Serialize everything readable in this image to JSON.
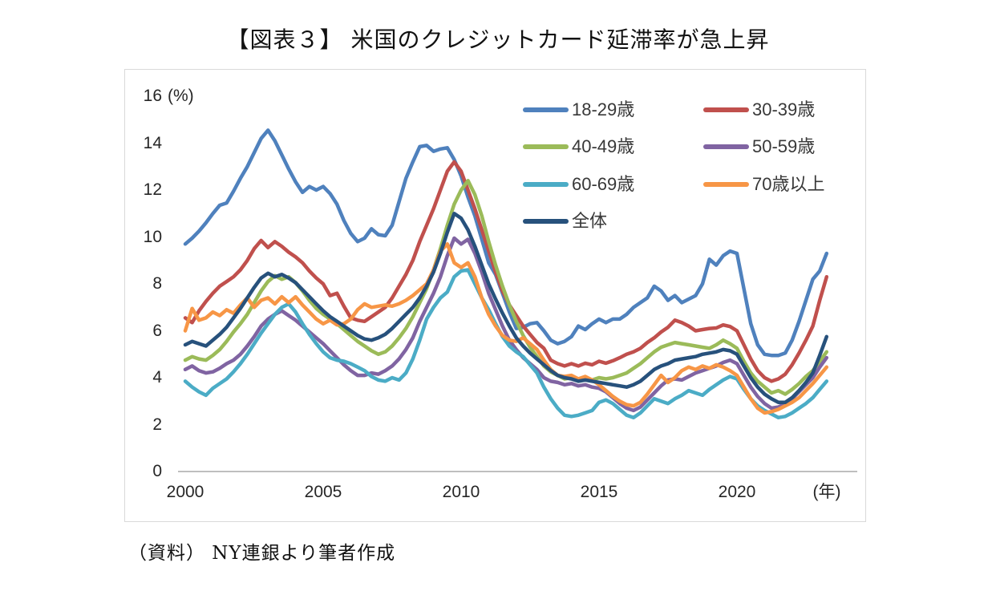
{
  "title": "【図表３】 米国のクレジットカード延滞率が急上昇",
  "source_note": "（資料） NY連銀より筆者作成",
  "chart_data": {
    "type": "line",
    "title": "【図表３】 米国のクレジットカード延滞率が急上昇",
    "grid": false,
    "legend": {
      "position": "top-right",
      "columns": 2
    },
    "y_axis": {
      "unit_label": "(%)",
      "min": 0,
      "max": 16,
      "tick_interval": 2,
      "ticks": [
        0,
        2,
        4,
        6,
        8,
        10,
        12,
        14,
        16
      ]
    },
    "x_axis": {
      "ticks": [
        2000,
        2005,
        2010,
        2015,
        2020
      ],
      "suffix_label": "(年)",
      "start_year": 2000,
      "end_year": 2023.25,
      "points_per_year": 4
    },
    "series": [
      {
        "name": "18-29歳",
        "color": "#4F81BD",
        "values": [
          9.7,
          9.95,
          10.25,
          10.6,
          11.0,
          11.35,
          11.45,
          11.95,
          12.5,
          13.0,
          13.6,
          14.2,
          14.55,
          14.1,
          13.5,
          12.9,
          12.35,
          11.9,
          12.15,
          12.0,
          12.15,
          11.85,
          11.4,
          10.7,
          10.15,
          9.8,
          9.95,
          10.35,
          10.1,
          10.05,
          10.5,
          11.5,
          12.5,
          13.2,
          13.85,
          13.9,
          13.65,
          13.75,
          13.8,
          13.3,
          12.6,
          11.7,
          10.9,
          9.9,
          8.9,
          8.4,
          7.6,
          6.8,
          6.1,
          6.15,
          6.3,
          6.35,
          6.0,
          5.6,
          5.45,
          5.55,
          5.75,
          6.2,
          6.05,
          6.3,
          6.5,
          6.35,
          6.5,
          6.5,
          6.7,
          7.0,
          7.2,
          7.4,
          7.9,
          7.7,
          7.3,
          7.5,
          7.2,
          7.35,
          7.5,
          8.0,
          9.05,
          8.8,
          9.2,
          9.4,
          9.3,
          7.8,
          6.3,
          5.4,
          5.0,
          4.95,
          4.95,
          5.05,
          5.6,
          6.4,
          7.3,
          8.2,
          8.55,
          9.3
        ]
      },
      {
        "name": "30-39歳",
        "color": "#C0504D",
        "values": [
          6.55,
          6.35,
          6.85,
          7.25,
          7.6,
          7.9,
          8.1,
          8.3,
          8.6,
          9.0,
          9.5,
          9.85,
          9.55,
          9.8,
          9.6,
          9.35,
          9.15,
          8.9,
          8.55,
          8.25,
          8.0,
          7.5,
          7.6,
          7.05,
          6.55,
          6.45,
          6.4,
          6.6,
          6.8,
          7.0,
          7.4,
          7.9,
          8.4,
          9.0,
          9.8,
          10.5,
          11.2,
          12.0,
          12.8,
          13.2,
          12.8,
          12.0,
          11.2,
          10.3,
          9.4,
          8.5,
          7.7,
          7.1,
          6.65,
          6.2,
          5.85,
          5.5,
          5.25,
          4.75,
          4.6,
          4.5,
          4.6,
          4.5,
          4.62,
          4.55,
          4.7,
          4.62,
          4.72,
          4.85,
          5.0,
          5.1,
          5.25,
          5.5,
          5.7,
          5.95,
          6.15,
          6.45,
          6.35,
          6.2,
          6.0,
          6.05,
          6.1,
          6.12,
          6.25,
          6.18,
          6.0,
          5.4,
          4.8,
          4.3,
          4.0,
          3.85,
          3.95,
          4.15,
          4.55,
          5.05,
          5.6,
          6.2,
          7.3,
          8.3
        ]
      },
      {
        "name": "40-49歳",
        "color": "#9BBB59",
        "values": [
          4.75,
          4.9,
          4.8,
          4.75,
          4.95,
          5.2,
          5.55,
          5.95,
          6.3,
          6.7,
          7.2,
          7.7,
          8.1,
          8.35,
          8.2,
          8.3,
          8.05,
          7.7,
          7.3,
          6.95,
          6.7,
          6.5,
          6.3,
          6.05,
          5.8,
          5.55,
          5.35,
          5.15,
          5.0,
          5.1,
          5.35,
          5.7,
          6.1,
          6.6,
          7.2,
          7.8,
          8.6,
          9.5,
          10.5,
          11.4,
          12.0,
          12.4,
          11.8,
          10.9,
          9.8,
          8.8,
          7.9,
          7.1,
          6.4,
          5.8,
          5.3,
          4.9,
          4.5,
          4.25,
          4.1,
          3.95,
          4.0,
          3.9,
          3.95,
          3.9,
          4.0,
          3.95,
          4.0,
          4.1,
          4.2,
          4.4,
          4.6,
          4.85,
          5.1,
          5.3,
          5.4,
          5.5,
          5.45,
          5.4,
          5.35,
          5.3,
          5.25,
          5.4,
          5.6,
          5.45,
          5.25,
          4.7,
          4.2,
          3.85,
          3.6,
          3.35,
          3.45,
          3.3,
          3.5,
          3.75,
          4.05,
          4.3,
          4.7,
          5.1
        ]
      },
      {
        "name": "50-59歳",
        "color": "#8064A2",
        "values": [
          4.35,
          4.5,
          4.3,
          4.2,
          4.25,
          4.4,
          4.6,
          4.75,
          5.0,
          5.35,
          5.75,
          6.2,
          6.5,
          6.7,
          6.85,
          6.65,
          6.45,
          6.2,
          5.95,
          5.7,
          5.45,
          5.15,
          4.85,
          4.55,
          4.3,
          4.1,
          4.1,
          4.2,
          4.15,
          4.3,
          4.5,
          4.8,
          5.2,
          5.7,
          6.4,
          7.0,
          7.6,
          8.3,
          9.2,
          9.95,
          9.7,
          9.9,
          9.3,
          8.5,
          7.6,
          6.9,
          6.2,
          5.6,
          5.2,
          4.85,
          4.6,
          4.35,
          4.0,
          3.85,
          3.8,
          3.7,
          3.75,
          3.65,
          3.7,
          3.6,
          3.55,
          3.4,
          3.15,
          2.9,
          2.7,
          2.6,
          2.75,
          3.05,
          3.35,
          3.65,
          3.9,
          3.95,
          3.9,
          4.05,
          4.2,
          4.3,
          4.4,
          4.5,
          4.65,
          4.75,
          4.6,
          4.1,
          3.6,
          3.2,
          2.9,
          2.7,
          2.75,
          2.9,
          3.1,
          3.4,
          3.7,
          4.0,
          4.45,
          4.85
        ]
      },
      {
        "name": "60-69歳",
        "color": "#4BACC6",
        "values": [
          3.85,
          3.6,
          3.4,
          3.25,
          3.55,
          3.75,
          3.95,
          4.25,
          4.6,
          5.0,
          5.45,
          5.9,
          6.3,
          6.7,
          7.0,
          7.15,
          6.8,
          6.3,
          5.85,
          5.45,
          5.1,
          4.85,
          4.75,
          4.7,
          4.6,
          4.45,
          4.3,
          4.05,
          3.9,
          3.85,
          4.0,
          3.9,
          4.2,
          4.8,
          5.6,
          6.5,
          7.0,
          7.4,
          7.65,
          8.3,
          8.55,
          8.6,
          8.0,
          7.4,
          6.9,
          6.3,
          5.75,
          5.35,
          5.1,
          4.9,
          4.55,
          4.2,
          3.6,
          3.1,
          2.7,
          2.4,
          2.35,
          2.4,
          2.5,
          2.6,
          2.95,
          3.05,
          2.9,
          2.65,
          2.4,
          2.3,
          2.5,
          2.8,
          3.1,
          3.0,
          2.9,
          3.1,
          3.25,
          3.45,
          3.35,
          3.25,
          3.5,
          3.7,
          3.9,
          4.05,
          3.95,
          3.5,
          3.1,
          2.8,
          2.6,
          2.45,
          2.3,
          2.35,
          2.5,
          2.7,
          2.9,
          3.15,
          3.5,
          3.85
        ]
      },
      {
        "name": "70歳以上",
        "color": "#F79646",
        "values": [
          6.0,
          6.95,
          6.45,
          6.55,
          6.8,
          6.65,
          6.9,
          6.75,
          7.1,
          7.4,
          7.0,
          7.3,
          7.4,
          7.15,
          7.45,
          7.2,
          7.45,
          7.1,
          6.8,
          6.5,
          6.3,
          6.45,
          6.25,
          6.3,
          6.5,
          6.9,
          7.15,
          7.0,
          7.05,
          7.1,
          7.05,
          7.15,
          7.3,
          7.5,
          7.75,
          8.0,
          8.6,
          9.4,
          9.7,
          8.9,
          8.7,
          8.9,
          8.3,
          7.4,
          6.7,
          6.2,
          5.8,
          5.6,
          5.55,
          5.7,
          5.45,
          5.2,
          4.75,
          4.35,
          4.1,
          4.05,
          4.1,
          3.95,
          4.05,
          3.9,
          3.7,
          3.45,
          3.2,
          3.0,
          2.85,
          2.8,
          2.95,
          3.3,
          3.7,
          4.1,
          3.8,
          4.0,
          4.3,
          4.45,
          4.35,
          4.5,
          4.4,
          4.55,
          4.45,
          4.3,
          4.1,
          3.6,
          3.1,
          2.7,
          2.5,
          2.55,
          2.65,
          2.8,
          2.95,
          3.15,
          3.45,
          3.75,
          4.1,
          4.45
        ]
      },
      {
        "name": "全体",
        "color": "#27517C",
        "values": [
          5.4,
          5.55,
          5.45,
          5.35,
          5.6,
          5.85,
          6.15,
          6.55,
          6.95,
          7.4,
          7.85,
          8.25,
          8.45,
          8.3,
          8.4,
          8.25,
          8.05,
          7.75,
          7.45,
          7.15,
          6.85,
          6.6,
          6.4,
          6.2,
          6.0,
          5.8,
          5.65,
          5.6,
          5.7,
          5.85,
          6.1,
          6.4,
          6.7,
          7.0,
          7.4,
          7.9,
          8.5,
          9.3,
          10.2,
          11.0,
          10.8,
          10.3,
          9.6,
          8.8,
          8.0,
          7.35,
          6.75,
          6.2,
          5.7,
          5.35,
          5.05,
          4.8,
          4.55,
          4.3,
          4.1,
          4.0,
          3.95,
          3.85,
          3.9,
          3.85,
          3.8,
          3.75,
          3.7,
          3.65,
          3.6,
          3.7,
          3.85,
          4.1,
          4.35,
          4.5,
          4.6,
          4.75,
          4.8,
          4.85,
          4.9,
          5.0,
          5.05,
          5.1,
          5.2,
          5.15,
          5.0,
          4.5,
          4.0,
          3.6,
          3.3,
          3.1,
          2.95,
          2.95,
          3.15,
          3.45,
          3.8,
          4.2,
          4.95,
          5.75
        ]
      }
    ]
  }
}
